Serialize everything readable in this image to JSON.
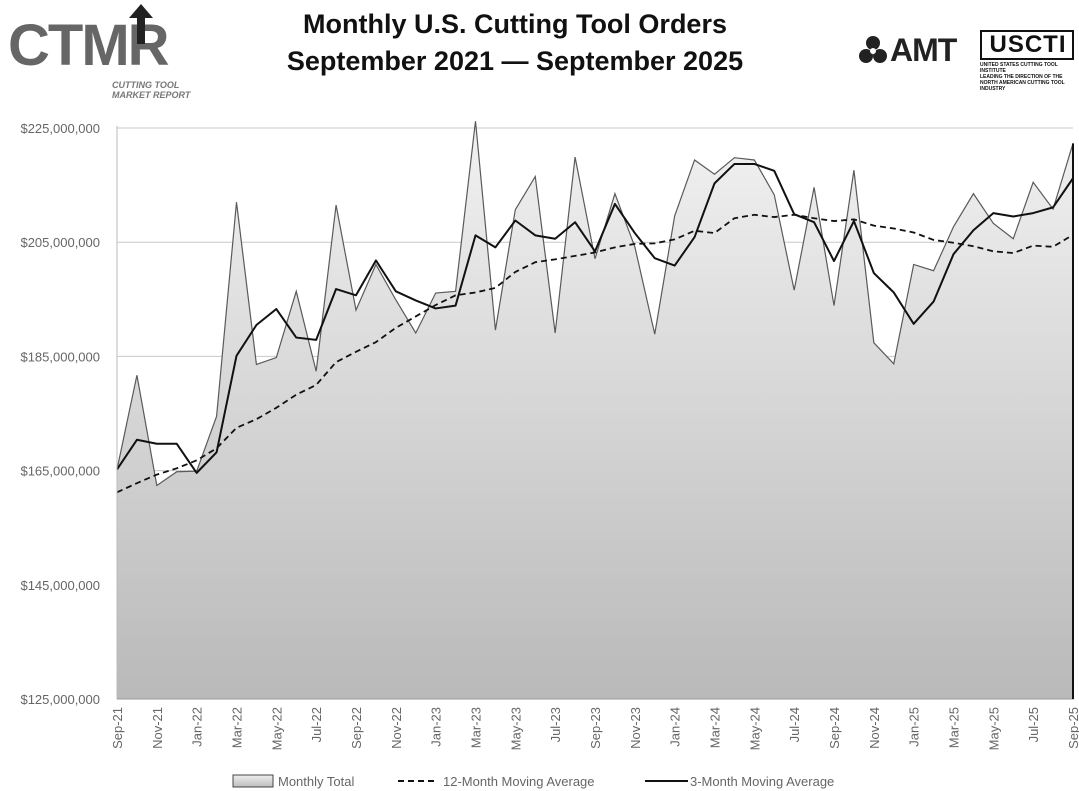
{
  "header": {
    "title_line1": "Monthly U.S. Cutting Tool Orders",
    "title_line2": "September 2021 — September 2025"
  },
  "logos": {
    "ctmr": "CTMR",
    "ctmr_sub_line1": "Cutting Tool",
    "ctmr_sub_line2": "Market Report",
    "amt": "AMT",
    "usct": "USCTI",
    "usct_sub_line1": "UNITED STATES CUTTING TOOL INSTITUTE",
    "usct_sub_line2": "LEADING THE DIRECTION OF THE NORTH AMERICAN CUTTING TOOL INDUSTRY"
  },
  "chart_data": {
    "type": "area",
    "title": "Monthly U.S. Cutting Tool Orders September 2021 — September 2025",
    "x": [
      "Sep-21",
      "Oct-21",
      "Nov-21",
      "Dec-21",
      "Jan-22",
      "Feb-22",
      "Mar-22",
      "Apr-22",
      "May-22",
      "Jun-22",
      "Jul-22",
      "Aug-22",
      "Sep-22",
      "Oct-22",
      "Nov-22",
      "Dec-22",
      "Jan-23",
      "Feb-23",
      "Mar-23",
      "Apr-23",
      "May-23",
      "Jun-23",
      "Jul-23",
      "Aug-23",
      "Sep-23",
      "Oct-23",
      "Nov-23",
      "Dec-23",
      "Jan-24",
      "Feb-24",
      "Mar-24",
      "Apr-24",
      "May-24",
      "Jun-24",
      "Jul-24",
      "Aug-24",
      "Sep-24",
      "Oct-24",
      "Nov-24",
      "Dec-24",
      "Jan-25",
      "Feb-25",
      "Mar-25",
      "Apr-25",
      "May-25",
      "Jun-25",
      "Jul-25",
      "Aug-25",
      "Sep-25"
    ],
    "tick_labels": [
      "Sep-21",
      "Nov-21",
      "Jan-22",
      "Mar-22",
      "May-22",
      "Jul-22",
      "Sep-22",
      "Nov-22",
      "Jan-23",
      "Mar-23",
      "May-23",
      "Jul-23",
      "Sep-23",
      "Nov-23",
      "Jan-24",
      "Mar-24",
      "May-24",
      "Jul-24",
      "Sep-24",
      "Nov-24",
      "Jan-25",
      "Mar-25",
      "May-25",
      "Jul-25",
      "Sep-25"
    ],
    "y_tick_labels": [
      "$125,000,000",
      "$145,000,000",
      "$165,000,000",
      "$185,000,000",
      "$205,000,000",
      "$225,000,000"
    ],
    "y_ticks": [
      125000000,
      145000000,
      165000000,
      185000000,
      205000000,
      225000000
    ],
    "ylim": [
      125000000,
      225000000
    ],
    "grid": true,
    "legend_position": "bottom",
    "series": [
      {
        "name": "Monthly Total",
        "style": "area",
        "values": [
          165200000,
          181700000,
          162400000,
          164800000,
          164900000,
          174500000,
          212000000,
          183600000,
          184800000,
          196400000,
          182400000,
          211500000,
          193100000,
          201100000,
          194900000,
          189100000,
          196100000,
          196400000,
          226200000,
          189600000,
          210700000,
          216500000,
          189100000,
          219900000,
          202100000,
          213500000,
          204200000,
          188900000,
          209600000,
          219400000,
          216900000,
          219800000,
          219400000,
          213300000,
          196600000,
          214600000,
          193900000,
          217600000,
          187400000,
          183700000,
          201100000,
          200000000,
          207700000,
          213500000,
          208300000,
          205600000,
          215500000,
          210800000,
          222300000
        ]
      },
      {
        "name": "12-Month Moving Average",
        "style": "dashed",
        "values": [
          161200000,
          162800000,
          164300000,
          165400000,
          166800000,
          168900000,
          172500000,
          174000000,
          176000000,
          178300000,
          180000000,
          184000000,
          185800000,
          187500000,
          190000000,
          192000000,
          194000000,
          195700000,
          196200000,
          197000000,
          199800000,
          201500000,
          202000000,
          202600000,
          203200000,
          204100000,
          204700000,
          204800000,
          205500000,
          207000000,
          206600000,
          209200000,
          209800000,
          209400000,
          209800000,
          209200000,
          208700000,
          209000000,
          207900000,
          207400000,
          206700000,
          205400000,
          204900000,
          204300000,
          203400000,
          203100000,
          204400000,
          204200000,
          206300000
        ]
      },
      {
        "name": "3-Month Moving Average",
        "style": "solid",
        "values": [
          165200000,
          170400000,
          169700000,
          169700000,
          164600000,
          168200000,
          185100000,
          190500000,
          193300000,
          188300000,
          187900000,
          196800000,
          195700000,
          201800000,
          196400000,
          194800000,
          193400000,
          193900000,
          206200000,
          204100000,
          208800000,
          206200000,
          205600000,
          208500000,
          203400000,
          211700000,
          206600000,
          202200000,
          200900000,
          205900000,
          215300000,
          218700000,
          218700000,
          217500000,
          209900000,
          208500000,
          201700000,
          208700000,
          199600000,
          196200000,
          190700000,
          194600000,
          202900000,
          207100000,
          210100000,
          209500000,
          210100000,
          211100000,
          216200000
        ]
      }
    ]
  }
}
